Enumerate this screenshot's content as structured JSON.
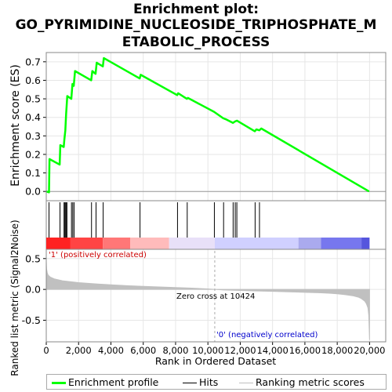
{
  "title": {
    "line1": "Enrichment plot:",
    "line2": "GO_PYRIMIDINE_NUCLEOSIDE_TRIPHOSPHATE_M",
    "line3": "ETABOLIC_PROCESS"
  },
  "colors": {
    "es_line": "#00ff00",
    "hits": "#000000",
    "metric_fill": "#c0c0c0",
    "positive_text": "#cc0000",
    "negative_text": "#0000cc",
    "zero_line": "#aaaaaa"
  },
  "chart_data": [
    {
      "type": "line",
      "name": "enrichment-score-panel",
      "ylabel": "Enrichment score (ES)",
      "xlim": [
        0,
        21000
      ],
      "ylim": [
        -0.05,
        0.75
      ],
      "yticks": [
        0.0,
        0.1,
        0.2,
        0.3,
        0.4,
        0.5,
        0.6,
        0.7
      ],
      "ytick_labels": [
        "0.0",
        "0.1",
        "0.2",
        "0.3",
        "0.4",
        "0.5",
        "0.6",
        "0.7"
      ],
      "grid": true,
      "series": [
        {
          "name": "Enrichment profile",
          "x": [
            0,
            170,
            200,
            830,
            870,
            1080,
            1120,
            1180,
            1230,
            1260,
            1300,
            1550,
            1620,
            1700,
            1780,
            2780,
            2850,
            3050,
            3120,
            3500,
            3560,
            5780,
            5840,
            8100,
            8160,
            8700,
            8760,
            10380,
            10950,
            11100,
            11550,
            11680,
            11800,
            12900,
            13000,
            13180,
            13300,
            19970
          ],
          "y": [
            0.0,
            -0.005,
            0.175,
            0.145,
            0.25,
            0.24,
            0.28,
            0.33,
            0.42,
            0.46,
            0.515,
            0.5,
            0.58,
            0.57,
            0.65,
            0.6,
            0.65,
            0.635,
            0.695,
            0.675,
            0.72,
            0.61,
            0.63,
            0.52,
            0.53,
            0.5,
            0.505,
            0.43,
            0.395,
            0.39,
            0.37,
            0.378,
            0.382,
            0.325,
            0.335,
            0.33,
            0.34,
            0.0
          ]
        }
      ]
    },
    {
      "type": "hits",
      "name": "hits-panel",
      "hit_positions": [
        170,
        850,
        1100,
        1150,
        1200,
        1250,
        1280,
        1560,
        1640,
        1720,
        2800,
        3080,
        3520,
        5800,
        8120,
        8720,
        10400,
        10970,
        11560,
        11690,
        11790,
        12920,
        13190
      ],
      "heatmap_colors": [
        "#ff2222",
        "#ff4444",
        "#ff7777",
        "#ffbbbb",
        "#e8e0f8",
        "#d0d0ff",
        "#aaaaee",
        "#7777ee",
        "#5555dd",
        "#3a10c8"
      ],
      "heatmap_breaks": [
        0,
        1500,
        3500,
        5200,
        7600,
        10424,
        15600,
        17000,
        19500,
        20000
      ]
    },
    {
      "type": "area",
      "name": "ranked-metric-panel",
      "xlabel": "Rank in Ordered Dataset",
      "ylabel": "Ranked list metric (Signal2Noise)",
      "xlim": [
        0,
        21000
      ],
      "ylim": [
        -0.85,
        0.65
      ],
      "xticks": [
        0,
        2000,
        4000,
        6000,
        8000,
        10000,
        12000,
        14000,
        16000,
        18000,
        20000
      ],
      "xtick_labels": [
        "0",
        "2,000",
        "4,000",
        "6,000",
        "8,000",
        "10,000",
        "12,000",
        "14,000",
        "16,000",
        "18,000",
        "20,000"
      ],
      "yticks": [
        0.5,
        0.0,
        -0.5
      ],
      "ytick_labels": [
        "0.5",
        "0.0",
        "-0.5"
      ],
      "x": [
        0,
        20,
        60,
        120,
        250,
        500,
        1000,
        2000,
        3000,
        4000,
        5000,
        6000,
        7000,
        8000,
        9000,
        10000,
        10424,
        11000,
        12000,
        13000,
        14000,
        15000,
        16000,
        17000,
        17500,
        18000,
        18500,
        19000,
        19300,
        19500,
        19700,
        19800,
        19900,
        19950,
        20000
      ],
      "values": [
        0.45,
        0.33,
        0.27,
        0.23,
        0.2,
        0.17,
        0.14,
        0.11,
        0.09,
        0.075,
        0.06,
        0.05,
        0.04,
        0.03,
        0.02,
        0.008,
        0.0,
        -0.01,
        -0.018,
        -0.025,
        -0.032,
        -0.04,
        -0.047,
        -0.055,
        -0.062,
        -0.072,
        -0.085,
        -0.105,
        -0.125,
        -0.15,
        -0.19,
        -0.23,
        -0.3,
        -0.42,
        -0.82
      ],
      "zero_cross_label": "Zero cross at 10424",
      "zero_cross": 10424,
      "positive_label": "'1' (positively correlated)",
      "negative_label": "'0' (negatively correlated)"
    }
  ],
  "legend": {
    "items": [
      {
        "label": "Enrichment profile"
      },
      {
        "label": "Hits"
      },
      {
        "label": "Ranking metric scores"
      }
    ]
  }
}
